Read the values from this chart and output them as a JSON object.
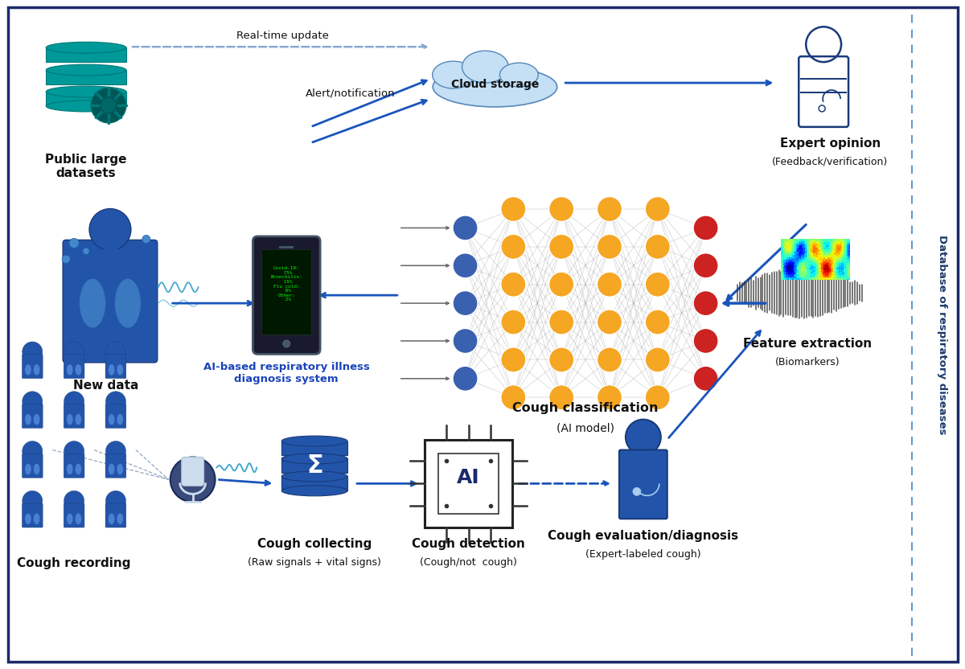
{
  "bg_color": "#ffffff",
  "border_color": "#1a2a6a",
  "blue_dark": "#1a3a6b",
  "blue_med": "#2255aa",
  "blue_light": "#4a90c4",
  "teal": "#007a7a",
  "orange_node": "#f5a623",
  "red_node": "#cc2222",
  "blue_node": "#3a60b0",
  "arrow_blue": "#1a55bb",
  "arrow_dashed": "#88aad0",
  "text_black": "#111111",
  "text_blue": "#1a44bb",
  "green_text": "#00ee00",
  "sidebar_text": "Database of respiratory diseases",
  "nodes_top_label": "Cough classification",
  "nodes_sub_label": "(AI model)",
  "expert_label": "Expert opinion",
  "expert_sub": "(Feedback/verification)",
  "feature_label": "Feature extraction",
  "feature_sub": "(Biomarkers)",
  "cloud_label": "Cloud storage",
  "public_label": "Public large\ndatasets",
  "newdata_label": "New data",
  "ai_label": "AI-based respiratory illness\ndiagnosis system",
  "cough_rec_label": "Cough recording",
  "cough_col_label": "Cough collecting",
  "cough_col_sub": "(Raw signals + vital signs)",
  "cough_det_label": "Cough detection",
  "cough_det_sub": "(Cough/not  cough)",
  "cough_eval_label": "Cough evaluation/diagnosis",
  "cough_eval_sub": "(Expert-labeled cough)",
  "realtime_label": "Real-time update",
  "alert_label": "Alert/notification"
}
